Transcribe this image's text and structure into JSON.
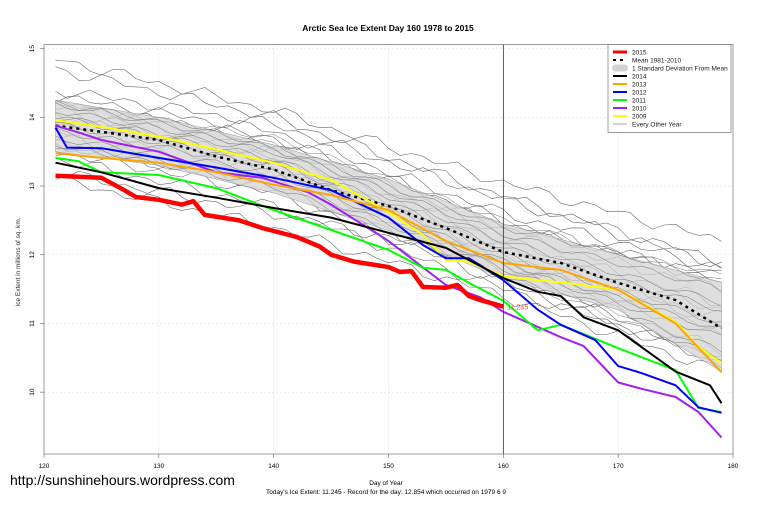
{
  "chart_data": {
    "type": "line",
    "title": "Arctic Sea Ice Extent Day 160 1978 to 2015",
    "xlabel": "Day of Year",
    "ylabel": "Ice Extent in millions of sq. km.",
    "xlim": [
      120,
      180
    ],
    "ylim": [
      9.1,
      15.06
    ],
    "xticks": [
      "120",
      "130",
      "140",
      "150",
      "160",
      "170",
      "180"
    ],
    "yticks": [
      "10",
      "11",
      "12",
      "13",
      "14",
      "15"
    ],
    "grid": true,
    "legend_position": "top-right",
    "vertical_marker_day": 160,
    "annotation": "11.245",
    "footnote": "Today's Ice Extent: 11.245  - Record for the day: 12.854 which occurred on 1979 6 9",
    "legend": [
      "2015",
      "Mean 1981-2010",
      "1 Standard Deviation From Mean",
      "2014",
      "2013",
      "2012",
      "2011",
      "2010",
      "2009",
      "Every Other Year"
    ],
    "band": {
      "name": "1 Standard Deviation From Mean",
      "color": "#d3d3d3",
      "x": [
        121,
        130,
        140,
        150,
        160,
        170,
        179
      ],
      "upper": [
        14.25,
        14.0,
        13.6,
        13.1,
        12.45,
        12.0,
        11.6
      ],
      "lower": [
        13.5,
        13.3,
        12.9,
        12.35,
        11.65,
        11.2,
        10.3
      ]
    },
    "mean": {
      "name": "Mean 1981-2010",
      "color": "#000000",
      "x": [
        121,
        125,
        130,
        135,
        140,
        145,
        150,
        155,
        160,
        165,
        170,
        175,
        179
      ],
      "y": [
        13.88,
        13.79,
        13.67,
        13.43,
        13.24,
        12.94,
        12.71,
        12.39,
        12.04,
        11.88,
        11.59,
        11.34,
        10.93
      ]
    },
    "series": [
      {
        "name": "2009",
        "color": "#ffff00",
        "x": [
          121,
          125,
          130,
          135,
          140,
          145,
          150,
          153,
          155,
          157,
          160,
          163,
          165,
          170,
          175,
          177,
          179
        ],
        "y": [
          13.96,
          13.86,
          13.72,
          13.53,
          13.34,
          13.09,
          12.62,
          12.29,
          11.92,
          11.9,
          11.69,
          11.63,
          11.6,
          11.49,
          11.02,
          10.66,
          10.42
        ]
      },
      {
        "name": "2010",
        "color": "#a020f0",
        "x": [
          121,
          123,
          125,
          130,
          135,
          139,
          143,
          145,
          150,
          155,
          158,
          160,
          163,
          165,
          167,
          170,
          172,
          175,
          177,
          179
        ],
        "y": [
          13.88,
          13.78,
          13.67,
          13.5,
          13.2,
          13.12,
          12.91,
          12.73,
          12.2,
          11.56,
          11.38,
          11.17,
          10.95,
          10.8,
          10.67,
          10.14,
          10.05,
          9.93,
          9.71,
          9.34
        ]
      },
      {
        "name": "2011",
        "color": "#00ff00",
        "x": [
          121,
          123,
          125,
          130,
          135,
          140,
          145,
          150,
          153,
          155,
          157,
          160,
          163,
          165,
          170,
          175,
          177,
          179
        ],
        "y": [
          13.41,
          13.36,
          13.2,
          13.16,
          12.97,
          12.65,
          12.36,
          12.07,
          11.81,
          11.78,
          11.59,
          11.33,
          10.9,
          10.98,
          10.64,
          10.32,
          9.77,
          9.71
        ]
      },
      {
        "name": "2012",
        "color": "#0000ff",
        "x": [
          121,
          122,
          125,
          130,
          135,
          140,
          145,
          150,
          153,
          155,
          157,
          160,
          163,
          165,
          168,
          170,
          172,
          175,
          177,
          179
        ],
        "y": [
          13.85,
          13.56,
          13.55,
          13.41,
          13.27,
          13.12,
          12.94,
          12.54,
          12.14,
          11.95,
          11.95,
          11.63,
          11.2,
          10.98,
          10.76,
          10.38,
          10.28,
          10.1,
          9.78,
          9.7
        ]
      },
      {
        "name": "2013",
        "color": "#ffa500",
        "x": [
          121,
          125,
          130,
          135,
          140,
          145,
          150,
          155,
          160,
          165,
          170,
          175,
          179
        ],
        "y": [
          13.48,
          13.41,
          13.34,
          13.2,
          13.02,
          12.87,
          12.65,
          12.2,
          11.88,
          11.78,
          11.49,
          11.0,
          10.29
        ]
      },
      {
        "name": "2014",
        "color": "#000000",
        "x": [
          121,
          125,
          130,
          135,
          140,
          145,
          150,
          155,
          160,
          163,
          165,
          167,
          170,
          175,
          178,
          179
        ],
        "y": [
          13.34,
          13.2,
          12.97,
          12.83,
          12.68,
          12.54,
          12.32,
          12.1,
          11.66,
          11.46,
          11.4,
          11.09,
          10.9,
          10.3,
          10.1,
          9.84
        ]
      },
      {
        "name": "2015",
        "color": "#ff0000",
        "x": [
          121,
          125,
          127,
          128,
          130,
          132,
          133,
          134,
          137,
          139,
          142,
          144,
          145,
          147,
          150,
          151,
          152,
          153,
          155,
          156,
          157,
          158,
          160
        ],
        "y": [
          13.15,
          13.12,
          12.94,
          12.84,
          12.8,
          12.73,
          12.78,
          12.58,
          12.5,
          12.39,
          12.26,
          12.12,
          12.0,
          11.9,
          11.82,
          11.75,
          11.76,
          11.53,
          11.52,
          11.56,
          11.4,
          11.34,
          11.245
        ]
      }
    ],
    "other_years": {
      "name": "Every Other Year",
      "color": "#808080",
      "x": [
        121,
        140,
        160,
        179
      ],
      "lines": [
        [
          14.85,
          14.1,
          13.05,
          12.2
        ],
        [
          14.7,
          14.0,
          12.85,
          11.9
        ],
        [
          14.4,
          13.9,
          12.8,
          11.85
        ],
        [
          14.3,
          13.8,
          12.6,
          11.8
        ],
        [
          14.2,
          13.7,
          12.5,
          11.6
        ],
        [
          14.2,
          13.6,
          12.4,
          11.7
        ],
        [
          14.1,
          13.55,
          12.3,
          11.5
        ],
        [
          14.0,
          13.5,
          12.2,
          11.3
        ],
        [
          14.0,
          13.4,
          12.1,
          11.2
        ],
        [
          13.9,
          13.35,
          12.0,
          11.0
        ],
        [
          13.8,
          13.3,
          11.9,
          10.9
        ],
        [
          13.7,
          13.2,
          11.85,
          10.8
        ],
        [
          13.6,
          13.1,
          11.8,
          10.6
        ],
        [
          13.6,
          13.0,
          11.7,
          10.5
        ],
        [
          13.5,
          12.9,
          11.6,
          10.4
        ],
        [
          13.4,
          12.7,
          11.5,
          10.5
        ],
        [
          13.2,
          12.6,
          11.9,
          11.1
        ],
        [
          13.1,
          12.4,
          11.4,
          10.3
        ]
      ]
    }
  },
  "watermark_url": "http://sunshinehours.wordpress.com"
}
